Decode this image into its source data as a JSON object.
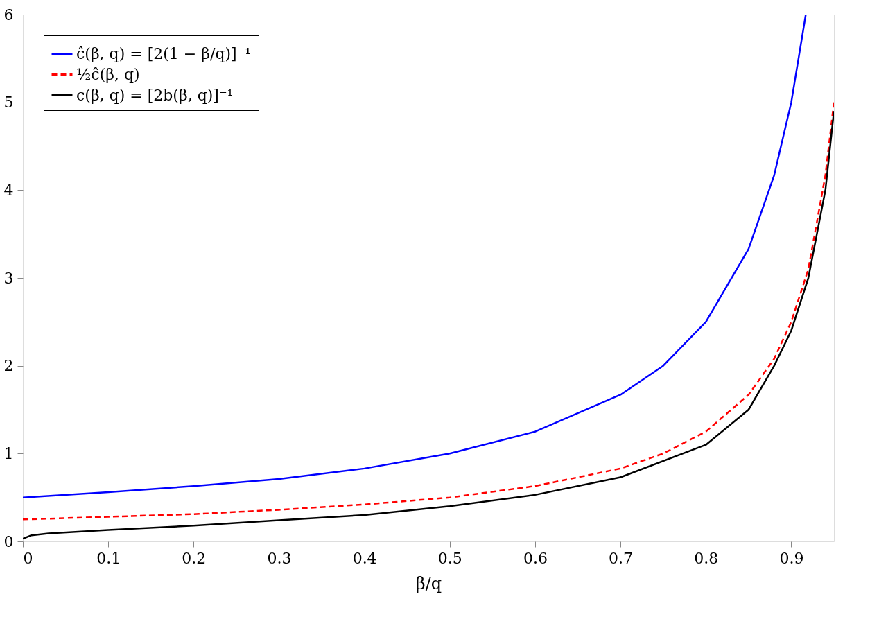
{
  "chart_data": {
    "type": "line",
    "xlabel": "β/q",
    "xlim": [
      0,
      0.95
    ],
    "ylim": [
      0,
      6
    ],
    "xticks": [
      0,
      0.1,
      0.2,
      0.3,
      0.4,
      0.5,
      0.6,
      0.7,
      0.8,
      0.9
    ],
    "yticks": [
      0,
      1,
      2,
      3,
      4,
      5,
      6
    ],
    "grid": false,
    "legend": "top left",
    "marker": "none",
    "series": [
      {
        "name": "ĉ(β, q) = [2(1 − β/q)]⁻¹",
        "color": "#0000ff",
        "line_style": "solid",
        "x": [
          0,
          0.1,
          0.2,
          0.3,
          0.4,
          0.5,
          0.6,
          0.7,
          0.75,
          0.8,
          0.85,
          0.88,
          0.9,
          0.917
        ],
        "values": [
          0.5,
          0.56,
          0.63,
          0.71,
          0.83,
          1.0,
          1.25,
          1.67,
          2.0,
          2.5,
          3.33,
          4.17,
          5.0,
          6.0
        ]
      },
      {
        "name": "½ĉ(β, q)",
        "color": "#ff0000",
        "line_style": "dashed",
        "x": [
          0,
          0.1,
          0.2,
          0.3,
          0.4,
          0.5,
          0.6,
          0.7,
          0.75,
          0.8,
          0.85,
          0.88,
          0.9,
          0.92,
          0.94,
          0.95
        ],
        "values": [
          0.25,
          0.28,
          0.31,
          0.36,
          0.42,
          0.5,
          0.63,
          0.83,
          1.0,
          1.25,
          1.67,
          2.08,
          2.5,
          3.1,
          4.17,
          5.0
        ]
      },
      {
        "name": "c(β, q) = [2b(β, q)]⁻¹",
        "color": "#000000",
        "line_style": "solid",
        "x": [
          0,
          0.01,
          0.03,
          0.1,
          0.2,
          0.3,
          0.4,
          0.5,
          0.6,
          0.7,
          0.8,
          0.85,
          0.88,
          0.9,
          0.92,
          0.94,
          0.95
        ],
        "values": [
          0.03,
          0.07,
          0.09,
          0.13,
          0.18,
          0.24,
          0.3,
          0.4,
          0.53,
          0.73,
          1.1,
          1.5,
          2.0,
          2.4,
          3.0,
          4.0,
          4.9
        ]
      }
    ]
  }
}
